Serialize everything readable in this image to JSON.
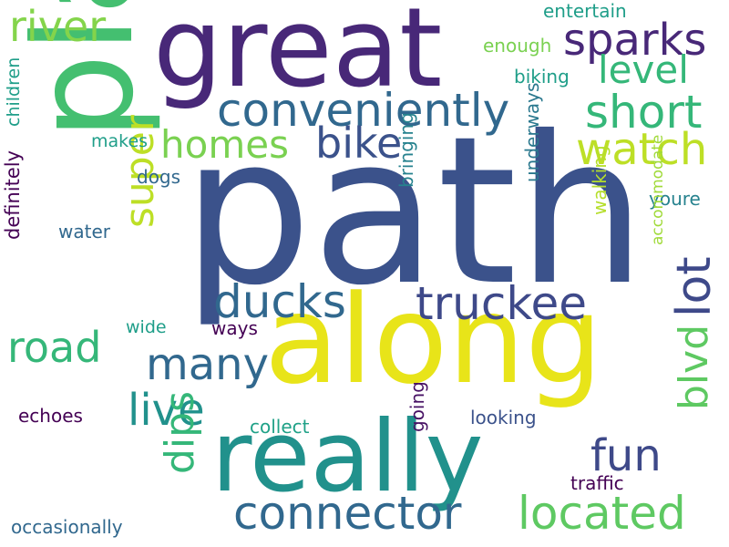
{
  "words": [
    {
      "text": "path",
      "color": "#3b528b"
    },
    {
      "text": "place",
      "color": "#44bf70"
    },
    {
      "text": "great",
      "color": "#482878"
    },
    {
      "text": "along",
      "color": "#e8e419"
    },
    {
      "text": "really",
      "color": "#21918c"
    },
    {
      "text": "conveniently",
      "color": "#31688e"
    },
    {
      "text": "sparks",
      "color": "#482878"
    },
    {
      "text": "river",
      "color": "#84d44b"
    },
    {
      "text": "level",
      "color": "#35b779"
    },
    {
      "text": "short",
      "color": "#35b779"
    },
    {
      "text": "homes",
      "color": "#7ad151"
    },
    {
      "text": "bike",
      "color": "#3b528b"
    },
    {
      "text": "watch",
      "color": "#bddf26"
    },
    {
      "text": "super",
      "color": "#bddf26"
    },
    {
      "text": "ducks",
      "color": "#31688e"
    },
    {
      "text": "truckee",
      "color": "#3e4989"
    },
    {
      "text": "lot",
      "color": "#3e4989"
    },
    {
      "text": "road",
      "color": "#35b779"
    },
    {
      "text": "many",
      "color": "#31688e"
    },
    {
      "text": "live",
      "color": "#21918c"
    },
    {
      "text": "blvd",
      "color": "#5ec962"
    },
    {
      "text": "fun",
      "color": "#3e4989"
    },
    {
      "text": "dips",
      "color": "#35b779"
    },
    {
      "text": "connector",
      "color": "#31688e"
    },
    {
      "text": "located",
      "color": "#5ec962"
    },
    {
      "text": "entertain",
      "color": "#1f9e89"
    },
    {
      "text": "enough",
      "color": "#7ad151"
    },
    {
      "text": "biking",
      "color": "#1f9e89"
    },
    {
      "text": "makes",
      "color": "#1f9e89"
    },
    {
      "text": "children",
      "color": "#1f9e89"
    },
    {
      "text": "dogs",
      "color": "#31688e"
    },
    {
      "text": "youre",
      "color": "#26828e"
    },
    {
      "text": "water",
      "color": "#31688e"
    },
    {
      "text": "definitely",
      "color": "#440154"
    },
    {
      "text": "bringing",
      "color": "#26828e"
    },
    {
      "text": "underways",
      "color": "#2a788e"
    },
    {
      "text": "walking",
      "color": "#b5de2b"
    },
    {
      "text": "accommodate",
      "color": "#a0da39"
    },
    {
      "text": "wide",
      "color": "#1f9e89"
    },
    {
      "text": "ways",
      "color": "#440154"
    },
    {
      "text": "echoes",
      "color": "#440154"
    },
    {
      "text": "collect",
      "color": "#1fa187"
    },
    {
      "text": "going",
      "color": "#471164"
    },
    {
      "text": "looking",
      "color": "#3b528b"
    },
    {
      "text": "traffic",
      "color": "#440154"
    },
    {
      "text": "occasionally",
      "color": "#31688e"
    }
  ]
}
